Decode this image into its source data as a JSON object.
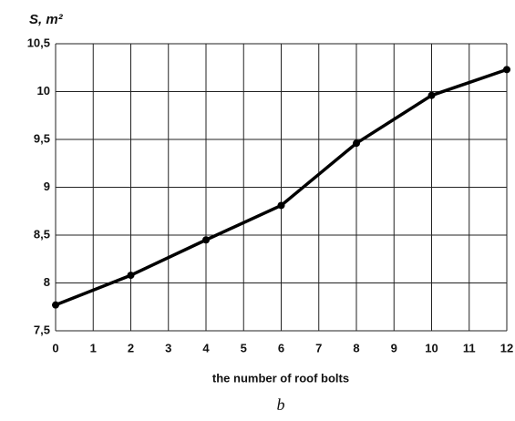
{
  "chart_data": {
    "type": "line",
    "y_label": "S, m²",
    "x_label": "the number of roof bolts",
    "caption": "b",
    "x": [
      0,
      2,
      4,
      6,
      8,
      10,
      12
    ],
    "series": [
      {
        "color": "#000000",
        "values": [
          7.77,
          8.08,
          8.45,
          8.81,
          9.46,
          9.96,
          10.23
        ]
      }
    ],
    "xlim": [
      0,
      12
    ],
    "xticks": [
      0,
      1,
      2,
      3,
      4,
      5,
      6,
      7,
      8,
      9,
      10,
      11,
      12
    ],
    "ylim": [
      7.5,
      10.5
    ],
    "yticks": [
      {
        "value": 7.5,
        "label": "7,5"
      },
      8,
      {
        "value": 8.5,
        "label": "8,5"
      },
      9,
      {
        "value": 9.5,
        "label": "9,5"
      },
      10,
      {
        "value": 10.5,
        "label": "10,5"
      }
    ],
    "grid": true
  }
}
